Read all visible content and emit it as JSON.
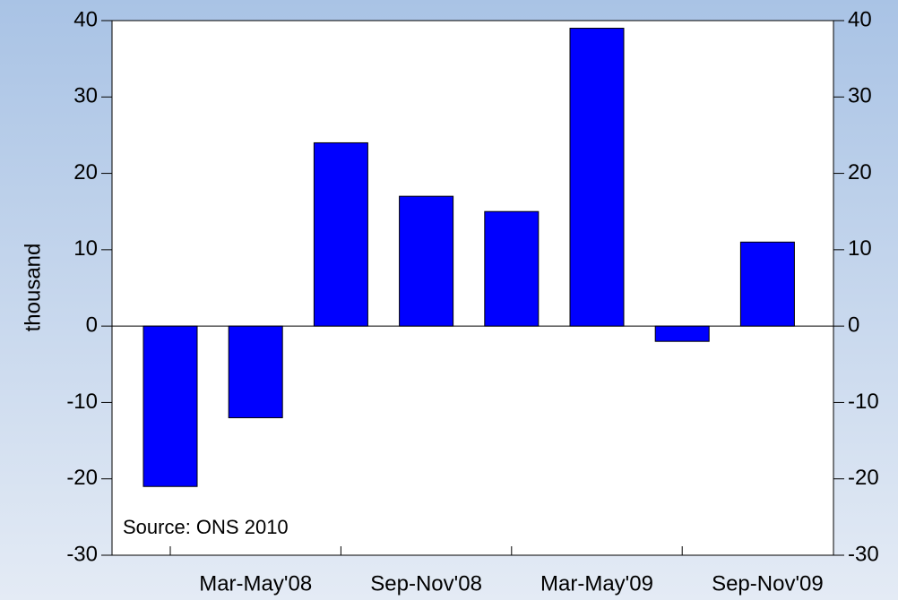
{
  "chart_data": {
    "type": "bar",
    "ylabel": "thousand",
    "annotation": "Source: ONS 2010",
    "categories": [
      null,
      "Mar-May'08",
      null,
      "Sep-Nov'08",
      null,
      "Mar-May'09",
      null,
      "Sep-Nov'09"
    ],
    "values": [
      -21,
      -12,
      24,
      17,
      15,
      39,
      -2,
      11
    ],
    "color": "#0000ff",
    "ylim": [
      -30,
      40
    ],
    "yticks": [
      -30,
      -20,
      -10,
      0,
      10,
      20,
      30,
      40
    ],
    "y2lim": [
      -30,
      40
    ],
    "y2ticks": [
      -30,
      -20,
      -10,
      0,
      10,
      20,
      30,
      40
    ],
    "grid": false
  }
}
